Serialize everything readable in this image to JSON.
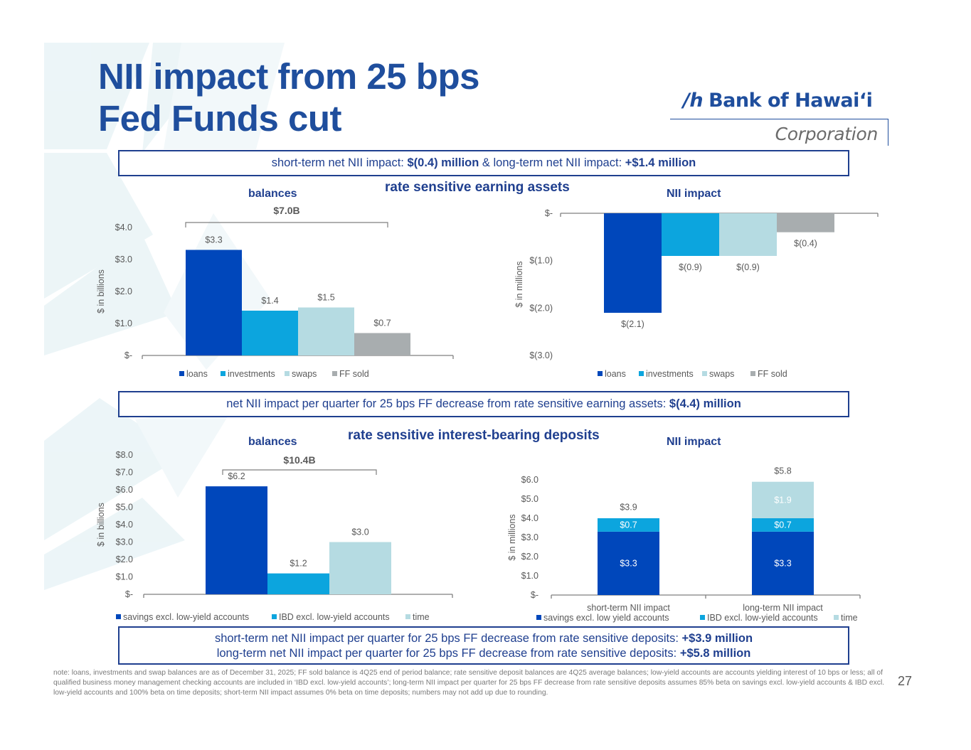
{
  "title": {
    "line1": "NII impact from 25 bps",
    "line2": "Fed Funds cut"
  },
  "logo": {
    "mark": "/h",
    "name": "Bank of Hawai‘i",
    "sub": "Corporation"
  },
  "summary_top": {
    "text1": "short-term net NII impact: ",
    "bold1": "$(0.4) million",
    "text2": " & long-term net NII impact: ",
    "bold2": "+$1.4 million"
  },
  "section_assets": {
    "title": "rate sensitive earning assets",
    "left_label": "balances",
    "right_label": "NII impact"
  },
  "summary_mid": {
    "text1": "net NII impact per quarter for 25 bps FF decrease from rate sensitive earning assets: ",
    "bold1": "$(4.4) million"
  },
  "section_deposits": {
    "title": "rate sensitive interest-bearing deposits",
    "left_label": "balances",
    "right_label": "NII impact"
  },
  "summary_bottom": {
    "line1_text": "short-term net NII impact per quarter for 25 bps FF decrease from rate sensitive deposits: ",
    "line1_bold": "+$3.9 million",
    "line2_text": "long-term net NII impact per quarter for 25 bps FF decrease from rate sensitive deposits: ",
    "line2_bold": "+$5.8 million"
  },
  "note": "note: loans, investments and swap balances are as of December 31, 2025; FF sold balance is 4Q25 end of period balance; rate sensitive deposit balances are 4Q25 average balances; low-yield accounts are accounts yielding interest of 10 bps or less; all of qualified business money management checking accounts are included in ‘IBD excl. low-yield accounts’; long-term NII impact per quarter for 25 bps FF decrease from rate sensitive deposits assumes 85% beta on savings excl. low-yield accounts & IBD excl. low-yield accounts and 100% beta on time deposits; short-term NII impact assumes 0% beta on time deposits; numbers may not add up due to rounding.",
  "page_number": "27",
  "colors": {
    "title_blue": "#1f4e9d",
    "dark_blue": "#0047bb",
    "mid_blue": "#0ca5de",
    "light_blue": "#b5dbe2",
    "gray": "#a8adaf"
  },
  "chart_data": [
    {
      "id": "assets-balances",
      "type": "bar",
      "title": "balances",
      "ylabel": "$ in billions",
      "ylim": [
        0,
        4
      ],
      "yticks": [
        0,
        1,
        2,
        3,
        4
      ],
      "ytick_labels": [
        "$-",
        "$1.0",
        "$2.0",
        "$3.0",
        "$4.0"
      ],
      "categories": [
        "loans",
        "investments",
        "swaps",
        "FF sold"
      ],
      "values": [
        3.3,
        1.4,
        1.5,
        0.7
      ],
      "data_labels": [
        "$3.3",
        "$1.4",
        "$1.5",
        "$0.7"
      ],
      "bracket_label": "$7.0B",
      "legend": [
        "loans",
        "investments",
        "swaps",
        "FF sold"
      ],
      "legend_position": "bottom",
      "grid": false
    },
    {
      "id": "assets-nii",
      "type": "bar",
      "title": "NII impact",
      "ylabel": "$ in millions",
      "ylim": [
        -3,
        0
      ],
      "yticks": [
        0,
        -1,
        -2,
        -3
      ],
      "ytick_labels": [
        "$-",
        "$(1.0)",
        "$(2.0)",
        "$(3.0)"
      ],
      "categories": [
        "loans",
        "investments",
        "swaps",
        "FF sold"
      ],
      "values": [
        -2.1,
        -0.9,
        -0.9,
        -0.4
      ],
      "data_labels": [
        "$(2.1)",
        "$(0.9)",
        "$(0.9)",
        "$(0.4)"
      ],
      "legend": [
        "loans",
        "investments",
        "swaps",
        "FF sold"
      ],
      "legend_position": "bottom",
      "grid": false
    },
    {
      "id": "deposits-balances",
      "type": "bar",
      "title": "balances",
      "ylabel": "$ in billions",
      "ylim": [
        0,
        8
      ],
      "yticks": [
        0,
        1,
        2,
        3,
        4,
        5,
        6,
        7,
        8
      ],
      "ytick_labels": [
        "$-",
        "$1.0",
        "$2.0",
        "$3.0",
        "$4.0",
        "$5.0",
        "$6.0",
        "$7.0",
        "$8.0"
      ],
      "categories": [
        "savings excl. low-yield accounts",
        "IBD excl. low-yield accounts",
        "time"
      ],
      "values": [
        6.2,
        1.2,
        3.0
      ],
      "data_labels": [
        "$6.2",
        "$1.2",
        "$3.0"
      ],
      "bracket_label": "$10.4B",
      "legend": [
        "savings excl. low-yield accounts",
        "IBD excl. low-yield accounts",
        "time"
      ],
      "legend_position": "bottom",
      "grid": false
    },
    {
      "id": "deposits-nii",
      "type": "bar",
      "stacked": true,
      "title": "NII impact",
      "ylabel": "$ in millions",
      "ylim": [
        0,
        6
      ],
      "yticks": [
        0,
        1,
        2,
        3,
        4,
        5,
        6
      ],
      "ytick_labels": [
        "$-",
        "$1.0",
        "$2.0",
        "$3.0",
        "$4.0",
        "$5.0",
        "$6.0"
      ],
      "categories": [
        "short-term NII impact",
        "long-term NII impact"
      ],
      "series": [
        {
          "name": "savings excl. low yield accounts",
          "values": [
            3.3,
            3.3
          ],
          "labels": [
            "$3.3",
            "$3.3"
          ]
        },
        {
          "name": "IBD excl. low-yield accounts",
          "values": [
            0.7,
            0.7
          ],
          "labels": [
            "$0.7",
            "$0.7"
          ]
        },
        {
          "name": "time",
          "values": [
            0,
            1.9
          ],
          "labels": [
            "",
            "$1.9"
          ]
        }
      ],
      "totals": [
        3.9,
        5.8
      ],
      "total_labels": [
        "$3.9",
        "$5.8"
      ],
      "legend": [
        "savings excl. low yield accounts",
        "IBD excl. low-yield accounts",
        "time"
      ],
      "legend_position": "bottom",
      "grid": false
    }
  ]
}
